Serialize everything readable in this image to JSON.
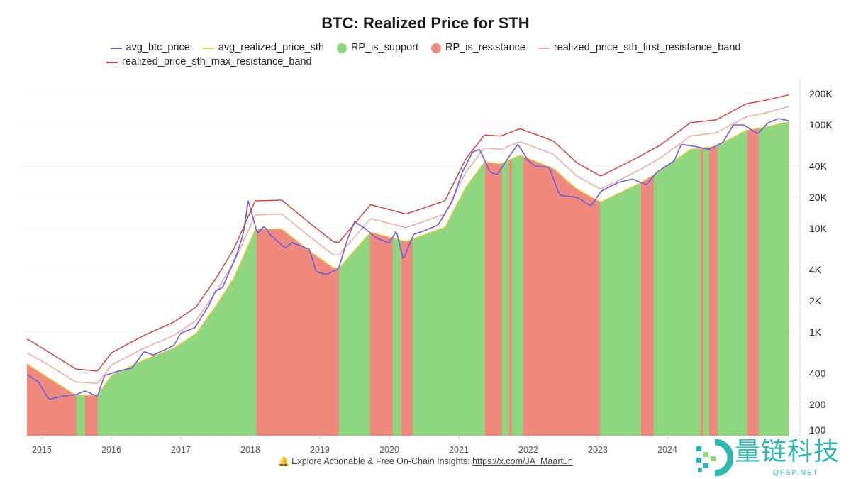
{
  "title": "BTC: Realized Price for STH",
  "legend": [
    {
      "label": "avg_btc_price",
      "kind": "line",
      "color": "#6c5ce7"
    },
    {
      "label": "avg_realized_price_sth",
      "kind": "line",
      "color": "#e6cf4a"
    },
    {
      "label": "RP_is_support",
      "kind": "dot",
      "color": "#8fd67e"
    },
    {
      "label": "RP_is_resistance",
      "kind": "dot",
      "color": "#f08a7e"
    },
    {
      "label": "realized_price_sth_first_resistance_band",
      "kind": "line",
      "color": "#f1a69d"
    },
    {
      "label": "realized_price_sth_max_resistance_band",
      "kind": "line",
      "color": "#d63c34"
    }
  ],
  "footer": {
    "icon": "bell-icon",
    "text": "Explore Actionable & Free On-Chain Insights: ",
    "link": "https://x.com/JA_Maartun"
  },
  "logo": {
    "cn": "量链科技",
    "en": "QFSP.NET"
  },
  "chart_data": {
    "type": "line",
    "title": "BTC: Realized Price for STH",
    "y_scale": "log",
    "ylim": [
      100,
      250000
    ],
    "xlim": [
      2014.79,
      2025.74
    ],
    "y_ticks": [
      {
        "value": 200000,
        "label": "200K"
      },
      {
        "value": 100000,
        "label": "100K"
      },
      {
        "value": 40000,
        "label": "40K"
      },
      {
        "value": 20000,
        "label": "20K"
      },
      {
        "value": 10000,
        "label": "10K"
      },
      {
        "value": 4000,
        "label": "4K"
      },
      {
        "value": 2000,
        "label": "2K"
      },
      {
        "value": 1000,
        "label": "1K"
      },
      {
        "value": 400,
        "label": "400"
      },
      {
        "value": 200,
        "label": "200"
      },
      {
        "value": 100,
        "label": "100"
      }
    ],
    "x_ticks": [
      "2015",
      "2016",
      "2017",
      "2018",
      "2019",
      "2020",
      "2021",
      "2022",
      "2023",
      "2024"
    ],
    "grid": true,
    "legend_position": "top",
    "series": [
      {
        "name": "avg_btc_price",
        "color": "#6c5ce7",
        "points": [
          [
            2014.79,
            390
          ],
          [
            2014.95,
            330
          ],
          [
            2015.1,
            225
          ],
          [
            2015.3,
            240
          ],
          [
            2015.5,
            250
          ],
          [
            2015.62,
            270
          ],
          [
            2015.8,
            240
          ],
          [
            2015.9,
            380
          ],
          [
            2016.1,
            420
          ],
          [
            2016.3,
            450
          ],
          [
            2016.47,
            650
          ],
          [
            2016.6,
            600
          ],
          [
            2016.9,
            740
          ],
          [
            2017.0,
            980
          ],
          [
            2017.2,
            1100
          ],
          [
            2017.4,
            1800
          ],
          [
            2017.5,
            2500
          ],
          [
            2017.6,
            2700
          ],
          [
            2017.8,
            5500
          ],
          [
            2017.9,
            9000
          ],
          [
            2017.97,
            18600
          ],
          [
            2018.1,
            9000
          ],
          [
            2018.2,
            10500
          ],
          [
            2018.3,
            8500
          ],
          [
            2018.5,
            6500
          ],
          [
            2018.6,
            7300
          ],
          [
            2018.85,
            6300
          ],
          [
            2018.95,
            3800
          ],
          [
            2019.1,
            3600
          ],
          [
            2019.27,
            4100
          ],
          [
            2019.4,
            8000
          ],
          [
            2019.5,
            11700
          ],
          [
            2019.65,
            10000
          ],
          [
            2019.8,
            8200
          ],
          [
            2020.0,
            7200
          ],
          [
            2020.1,
            9500
          ],
          [
            2020.2,
            5000
          ],
          [
            2020.35,
            8800
          ],
          [
            2020.5,
            9500
          ],
          [
            2020.7,
            10800
          ],
          [
            2020.9,
            18000
          ],
          [
            2021.05,
            35000
          ],
          [
            2021.2,
            55000
          ],
          [
            2021.3,
            58000
          ],
          [
            2021.45,
            35000
          ],
          [
            2021.55,
            33000
          ],
          [
            2021.7,
            47000
          ],
          [
            2021.85,
            65000
          ],
          [
            2022.0,
            45000
          ],
          [
            2022.1,
            40000
          ],
          [
            2022.3,
            39000
          ],
          [
            2022.45,
            21000
          ],
          [
            2022.7,
            20000
          ],
          [
            2022.9,
            16500
          ],
          [
            2023.05,
            23000
          ],
          [
            2023.3,
            28000
          ],
          [
            2023.5,
            30000
          ],
          [
            2023.7,
            26500
          ],
          [
            2023.85,
            35000
          ],
          [
            2024.1,
            45000
          ],
          [
            2024.2,
            65000
          ],
          [
            2024.4,
            62000
          ],
          [
            2024.6,
            58000
          ],
          [
            2024.8,
            68000
          ],
          [
            2024.95,
            100000
          ],
          [
            2025.1,
            100000
          ],
          [
            2025.3,
            82000
          ],
          [
            2025.45,
            105000
          ],
          [
            2025.6,
            115000
          ],
          [
            2025.74,
            110000
          ]
        ]
      },
      {
        "name": "avg_realized_price_sth",
        "color": "#e6cf4a",
        "points": [
          [
            2014.79,
            490
          ],
          [
            2015.1,
            360
          ],
          [
            2015.49,
            246
          ],
          [
            2015.8,
            246
          ],
          [
            2016.0,
            380
          ],
          [
            2016.47,
            540
          ],
          [
            2016.9,
            700
          ],
          [
            2017.22,
            970
          ],
          [
            2017.53,
            1900
          ],
          [
            2017.77,
            3400
          ],
          [
            2018.07,
            9800
          ],
          [
            2018.45,
            9900
          ],
          [
            2018.89,
            5800
          ],
          [
            2019.19,
            4200
          ],
          [
            2019.27,
            4100
          ],
          [
            2019.73,
            9200
          ],
          [
            2020.24,
            7500
          ],
          [
            2020.8,
            10300
          ],
          [
            2021.1,
            25000
          ],
          [
            2021.37,
            44000
          ],
          [
            2021.6,
            42000
          ],
          [
            2021.88,
            51000
          ],
          [
            2022.36,
            38000
          ],
          [
            2022.7,
            24000
          ],
          [
            2023.04,
            18000
          ],
          [
            2023.61,
            27500
          ],
          [
            2023.9,
            36000
          ],
          [
            2024.33,
            58000
          ],
          [
            2024.7,
            62000
          ],
          [
            2025.14,
            89000
          ],
          [
            2025.4,
            95000
          ],
          [
            2025.74,
            107000
          ]
        ]
      },
      {
        "name": "realized_price_sth_first_resistance_band",
        "color": "#f1a69d",
        "points": [
          [
            2014.79,
            630
          ],
          [
            2015.1,
            480
          ],
          [
            2015.49,
            330
          ],
          [
            2015.8,
            320
          ],
          [
            2016.0,
            480
          ],
          [
            2016.47,
            700
          ],
          [
            2016.9,
            930
          ],
          [
            2017.22,
            1300
          ],
          [
            2017.53,
            2600
          ],
          [
            2017.77,
            4800
          ],
          [
            2018.07,
            13500
          ],
          [
            2018.45,
            13800
          ],
          [
            2018.89,
            8000
          ],
          [
            2019.19,
            5600
          ],
          [
            2019.27,
            5500
          ],
          [
            2019.73,
            12500
          ],
          [
            2020.24,
            10200
          ],
          [
            2020.8,
            13800
          ],
          [
            2021.1,
            35000
          ],
          [
            2021.37,
            60000
          ],
          [
            2021.6,
            58000
          ],
          [
            2021.88,
            69000
          ],
          [
            2022.36,
            52000
          ],
          [
            2022.7,
            32000
          ],
          [
            2023.04,
            24000
          ],
          [
            2023.61,
            37000
          ],
          [
            2023.9,
            48000
          ],
          [
            2024.33,
            78000
          ],
          [
            2024.7,
            84000
          ],
          [
            2025.14,
            120000
          ],
          [
            2025.4,
            130000
          ],
          [
            2025.74,
            150000
          ]
        ]
      },
      {
        "name": "realized_price_sth_max_resistance_band",
        "color": "#d63c34",
        "points": [
          [
            2014.79,
            860
          ],
          [
            2015.1,
            640
          ],
          [
            2015.49,
            440
          ],
          [
            2015.8,
            420
          ],
          [
            2016.0,
            630
          ],
          [
            2016.47,
            930
          ],
          [
            2016.9,
            1250
          ],
          [
            2017.22,
            1750
          ],
          [
            2017.53,
            3500
          ],
          [
            2017.77,
            6500
          ],
          [
            2018.07,
            18500
          ],
          [
            2018.45,
            18800
          ],
          [
            2018.89,
            10800
          ],
          [
            2019.19,
            7500
          ],
          [
            2019.27,
            7300
          ],
          [
            2019.73,
            17000
          ],
          [
            2020.24,
            13800
          ],
          [
            2020.8,
            18500
          ],
          [
            2021.1,
            47000
          ],
          [
            2021.37,
            80000
          ],
          [
            2021.6,
            78000
          ],
          [
            2021.88,
            92000
          ],
          [
            2022.36,
            70000
          ],
          [
            2022.7,
            43000
          ],
          [
            2023.04,
            32000
          ],
          [
            2023.61,
            50000
          ],
          [
            2023.9,
            64000
          ],
          [
            2024.33,
            105000
          ],
          [
            2024.7,
            112000
          ],
          [
            2025.14,
            160000
          ],
          [
            2025.4,
            172000
          ],
          [
            2025.74,
            195000
          ]
        ]
      }
    ],
    "regimes": [
      {
        "start": 2014.79,
        "end": 2015.49,
        "state": "RP_is_resistance"
      },
      {
        "start": 2015.49,
        "end": 2015.62,
        "state": "RP_is_support"
      },
      {
        "start": 2015.62,
        "end": 2015.8,
        "state": "RP_is_resistance"
      },
      {
        "start": 2015.8,
        "end": 2018.09,
        "state": "RP_is_support"
      },
      {
        "start": 2018.09,
        "end": 2019.27,
        "state": "RP_is_resistance"
      },
      {
        "start": 2019.27,
        "end": 2019.73,
        "state": "RP_is_support"
      },
      {
        "start": 2019.73,
        "end": 2020.05,
        "state": "RP_is_resistance"
      },
      {
        "start": 2020.05,
        "end": 2020.17,
        "state": "RP_is_support"
      },
      {
        "start": 2020.17,
        "end": 2020.33,
        "state": "RP_is_resistance"
      },
      {
        "start": 2020.33,
        "end": 2021.37,
        "state": "RP_is_support"
      },
      {
        "start": 2021.37,
        "end": 2021.62,
        "state": "RP_is_resistance"
      },
      {
        "start": 2021.62,
        "end": 2021.72,
        "state": "RP_is_support"
      },
      {
        "start": 2021.72,
        "end": 2021.76,
        "state": "RP_is_resistance"
      },
      {
        "start": 2021.76,
        "end": 2021.93,
        "state": "RP_is_support"
      },
      {
        "start": 2021.93,
        "end": 2023.04,
        "state": "RP_is_resistance"
      },
      {
        "start": 2023.04,
        "end": 2023.63,
        "state": "RP_is_support"
      },
      {
        "start": 2023.63,
        "end": 2023.8,
        "state": "RP_is_resistance"
      },
      {
        "start": 2023.8,
        "end": 2024.48,
        "state": "RP_is_support"
      },
      {
        "start": 2024.48,
        "end": 2024.53,
        "state": "RP_is_resistance"
      },
      {
        "start": 2024.53,
        "end": 2024.6,
        "state": "RP_is_support"
      },
      {
        "start": 2024.6,
        "end": 2024.72,
        "state": "RP_is_resistance"
      },
      {
        "start": 2024.72,
        "end": 2025.16,
        "state": "RP_is_support"
      },
      {
        "start": 2025.16,
        "end": 2025.32,
        "state": "RP_is_resistance"
      },
      {
        "start": 2025.32,
        "end": 2025.74,
        "state": "RP_is_support"
      }
    ]
  }
}
